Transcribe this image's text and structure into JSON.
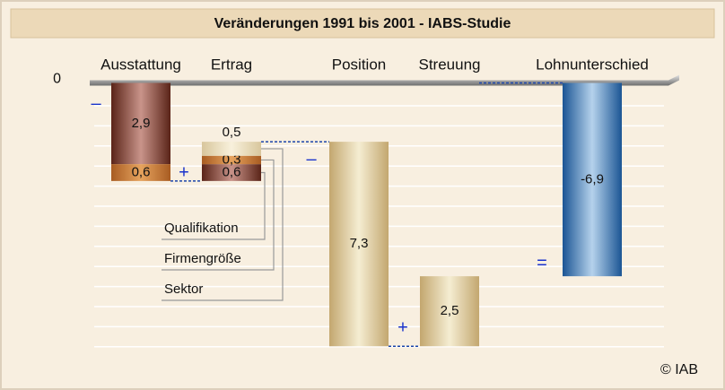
{
  "chart_data": {
    "type": "waterfall",
    "title": "Veränderungen 1991 bis 2001 - IABS-Studie",
    "ylim": [
      -10,
      1.2
    ],
    "yticks": [
      0
    ],
    "bars": [
      {
        "category": "Ausstattung",
        "sign": "–",
        "segments": [
          {
            "value": -2.9,
            "value_label": "2,9",
            "color": "#6b3426"
          },
          {
            "value": -0.6,
            "value_label": "0,6",
            "color": "#c27a35"
          }
        ]
      },
      {
        "category": "Ertrag",
        "sign": "+",
        "segments": [
          {
            "value": 0.6,
            "value_label": "0,6",
            "color": "#6b3426"
          },
          {
            "value": 0.3,
            "value_label": "0,3",
            "color": "#c27a35"
          },
          {
            "value": 0.5,
            "value_label": "0,5",
            "color": "#e9dbb4"
          }
        ]
      },
      {
        "category": "Position",
        "sign": "–",
        "segments": [
          {
            "value": -7.3,
            "value_label": "7,3",
            "color": "#cdb585"
          }
        ]
      },
      {
        "category": "Streuung",
        "sign": "+",
        "segments": [
          {
            "value": 2.5,
            "value_label": "2,5",
            "color": "#cdb585"
          }
        ]
      },
      {
        "category": "Lohnunterschied",
        "sign": "=",
        "segments": [
          {
            "value": -6.9,
            "value_label": "-6,9",
            "color": "#2a6aa8"
          }
        ]
      }
    ],
    "legend": [
      "Qualifikation",
      "Firmengröße",
      "Sektor"
    ],
    "source": "© IAB"
  }
}
